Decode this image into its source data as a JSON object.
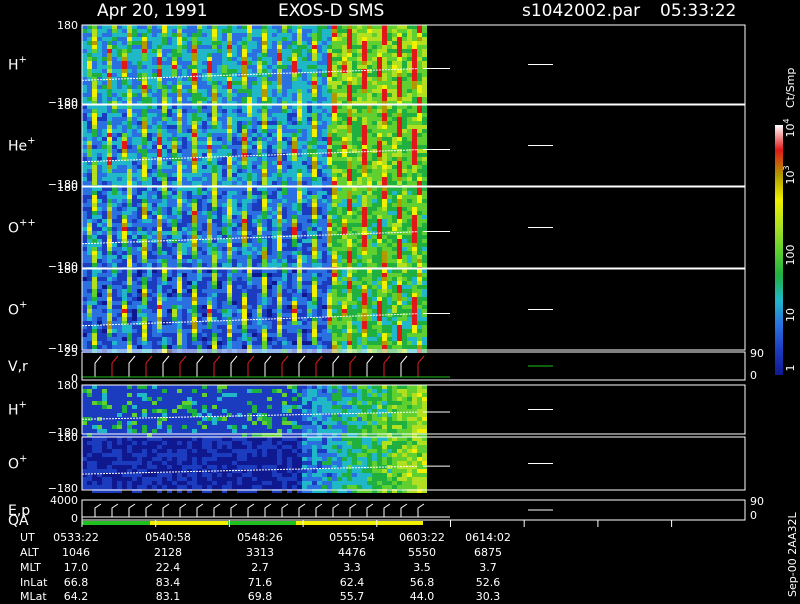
{
  "header": {
    "date": "Apr 20, 1991",
    "instrument": "EXOS-D SMS",
    "file": "s1042002.par",
    "time": "05:33:22"
  },
  "panels": [
    {
      "name": "H",
      "charge": "+",
      "top": "180",
      "bottom": "−180"
    },
    {
      "name": "He",
      "charge": "+",
      "top": "180",
      "bottom": "−180"
    },
    {
      "name": "O",
      "charge": "++",
      "top": "180",
      "bottom": "−180"
    },
    {
      "name": "O",
      "charge": "+",
      "top": "180",
      "bottom": "−180"
    },
    {
      "name": "V,r",
      "top": "25",
      "bottom": "0",
      "right_top": "90",
      "right_bottom": "0"
    },
    {
      "name": "H",
      "charge": "+",
      "top": "180",
      "bottom": "−180"
    },
    {
      "name": "O",
      "charge": "+",
      "top": "180",
      "bottom": "−180"
    },
    {
      "name": "E,p",
      "top": "4000",
      "bottom": "0",
      "right_top": "90",
      "right_bottom": "0"
    }
  ],
  "qa_label": "QA",
  "colorbar": {
    "unit": "Ct/Smp",
    "labels": [
      {
        "base": "10",
        "exp": "4"
      },
      {
        "base": "10",
        "exp": "3"
      },
      {
        "base": "100"
      },
      {
        "base": "10"
      },
      {
        "base": "1"
      }
    ]
  },
  "footer_note": "Sep-00 2AA32L",
  "table": {
    "rows": [
      [
        "UT",
        "0533:22",
        "0540:58",
        "0548:26",
        "0555:54",
        "0603:22",
        "0614:02"
      ],
      [
        "ALT",
        "1046",
        "2128",
        "3313",
        "4476",
        "5550",
        "6875"
      ],
      [
        "MLT",
        "17.0",
        "22.4",
        "2.7",
        "3.3",
        "3.5",
        "3.7"
      ],
      [
        "InLat",
        "66.8",
        "83.4",
        "71.6",
        "62.4",
        "56.8",
        "52.6"
      ],
      [
        "MLat",
        "64.2",
        "83.1",
        "69.8",
        "55.7",
        "44.0",
        "30.3"
      ]
    ]
  }
}
